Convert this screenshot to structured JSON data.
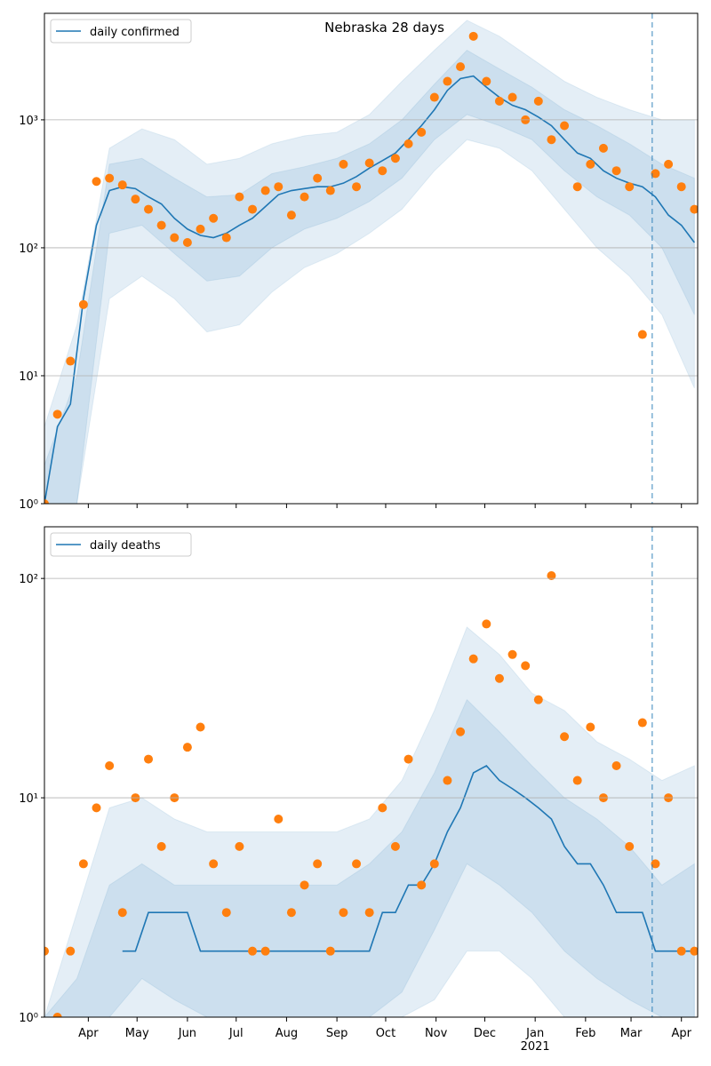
{
  "chart_data": [
    {
      "type": "line",
      "title": "Nebraska 28 days",
      "log_y": true,
      "grid": true,
      "legend": "upper left",
      "xlim": [
        4,
        406
      ],
      "ylim": [
        1,
        6800
      ],
      "vline_x": 378,
      "band_color": "#1f77b4",
      "yticks": [
        {
          "value": 1,
          "label": "10⁰"
        },
        {
          "value": 10,
          "label": "10¹"
        },
        {
          "value": 100,
          "label": "10²"
        },
        {
          "value": 1000,
          "label": "10³"
        }
      ],
      "xticks": [
        31,
        61,
        92,
        122,
        153,
        184,
        214,
        245,
        275,
        306,
        337,
        365,
        396
      ],
      "x": [
        4,
        12,
        20,
        28,
        36,
        44,
        52,
        60,
        68,
        76,
        84,
        92,
        100,
        108,
        116,
        124,
        132,
        140,
        148,
        156,
        164,
        172,
        180,
        188,
        196,
        204,
        212,
        220,
        228,
        236,
        244,
        252,
        260,
        268,
        276,
        284,
        292,
        300,
        308,
        316,
        324,
        332,
        340,
        348,
        356,
        364,
        372,
        380,
        388,
        396,
        404
      ],
      "series": [
        {
          "name": "daily confirmed",
          "color": "#1f77b4",
          "style": "line",
          "values": [
            1,
            4,
            6,
            40,
            150,
            280,
            300,
            290,
            250,
            220,
            170,
            140,
            125,
            120,
            130,
            150,
            170,
            210,
            260,
            280,
            290,
            300,
            300,
            320,
            360,
            420,
            480,
            550,
            700,
            900,
            1200,
            1700,
            2100,
            2200,
            1800,
            1500,
            1300,
            1200,
            1050,
            900,
            700,
            550,
            500,
            400,
            350,
            320,
            300,
            250,
            180,
            150,
            110
          ]
        },
        {
          "color": "#ff7f0e",
          "style": "scatter",
          "values": [
            1,
            5,
            13,
            36,
            330,
            350,
            310,
            240,
            200,
            150,
            120,
            110,
            140,
            170,
            120,
            250,
            200,
            280,
            300,
            180,
            250,
            350,
            280,
            450,
            300,
            460,
            400,
            500,
            650,
            800,
            1500,
            2000,
            2600,
            4500,
            2000,
            1400,
            1500,
            1000,
            1400,
            700,
            900,
            300,
            450,
            600,
            400,
            300,
            21,
            380,
            450,
            300,
            200
          ]
        }
      ],
      "band_x": [
        4,
        24,
        44,
        64,
        84,
        104,
        124,
        144,
        164,
        184,
        204,
        224,
        244,
        264,
        284,
        304,
        324,
        344,
        364,
        384,
        404
      ],
      "bands": [
        {
          "lower": [
            1,
            1,
            40,
            60,
            40,
            22,
            25,
            45,
            70,
            90,
            130,
            200,
            400,
            700,
            600,
            400,
            200,
            100,
            60,
            30,
            8
          ],
          "upper": [
            4,
            25,
            600,
            850,
            700,
            450,
            500,
            650,
            750,
            800,
            1100,
            2000,
            3500,
            6000,
            4500,
            3000,
            2000,
            1500,
            1200,
            1000,
            1000
          ]
        },
        {
          "lower": [
            1,
            1,
            130,
            150,
            90,
            55,
            60,
            100,
            140,
            170,
            230,
            350,
            700,
            1100,
            900,
            700,
            400,
            250,
            180,
            100,
            30
          ],
          "upper": [
            2,
            10,
            450,
            500,
            350,
            250,
            260,
            380,
            430,
            500,
            650,
            1000,
            1900,
            3500,
            2500,
            1800,
            1200,
            900,
            650,
            450,
            350
          ]
        }
      ]
    },
    {
      "type": "line",
      "log_y": true,
      "grid": true,
      "legend": "upper left",
      "xlim": [
        4,
        406
      ],
      "ylim": [
        1,
        172
      ],
      "vline_x": 378,
      "band_color": "#1f77b4",
      "yticks": [
        {
          "value": 1,
          "label": "10⁰"
        },
        {
          "value": 10,
          "label": "10¹"
        },
        {
          "value": 100,
          "label": "10²"
        }
      ],
      "xticks": [
        {
          "value": 31,
          "label": "Apr"
        },
        {
          "value": 61,
          "label": "May"
        },
        {
          "value": 92,
          "label": "Jun"
        },
        {
          "value": 122,
          "label": "Jul"
        },
        {
          "value": 153,
          "label": "Aug"
        },
        {
          "value": 184,
          "label": "Sep"
        },
        {
          "value": 214,
          "label": "Oct"
        },
        {
          "value": 245,
          "label": "Nov"
        },
        {
          "value": 275,
          "label": "Dec"
        },
        {
          "value": 306,
          "label": "Jan"
        },
        {
          "value": 337,
          "label": "Feb"
        },
        {
          "value": 365,
          "label": "Mar"
        },
        {
          "value": 396,
          "label": "Apr"
        }
      ],
      "xtick_sublabels": [
        {
          "value": 306,
          "label": "2021"
        }
      ],
      "x": [
        4,
        12,
        20,
        28,
        36,
        44,
        52,
        60,
        68,
        76,
        84,
        92,
        100,
        108,
        116,
        124,
        132,
        140,
        148,
        156,
        164,
        172,
        180,
        188,
        196,
        204,
        212,
        220,
        228,
        236,
        244,
        252,
        260,
        268,
        276,
        284,
        292,
        300,
        308,
        316,
        324,
        332,
        340,
        348,
        356,
        364,
        372,
        380,
        388,
        396,
        404
      ],
      "series": [
        {
          "name": "daily deaths",
          "color": "#1f77b4",
          "style": "line",
          "values": [
            null,
            null,
            null,
            null,
            null,
            null,
            2,
            2,
            3,
            3,
            3,
            3,
            2,
            2,
            2,
            2,
            2,
            2,
            2,
            2,
            2,
            2,
            2,
            2,
            2,
            2,
            3,
            3,
            4,
            4,
            5,
            7,
            9,
            13,
            14,
            12,
            11,
            10,
            9,
            8,
            6,
            5,
            5,
            4,
            3,
            3,
            3,
            2,
            2,
            2,
            2
          ]
        },
        {
          "color": "#ff7f0e",
          "style": "scatter",
          "values": [
            2,
            1,
            2,
            5,
            9,
            14,
            3,
            10,
            15,
            6,
            10,
            17,
            21,
            5,
            3,
            6,
            2,
            2,
            8,
            3,
            4,
            5,
            2,
            3,
            5,
            3,
            9,
            6,
            15,
            4,
            5,
            12,
            20,
            43,
            62,
            35,
            45,
            40,
            28,
            103,
            19,
            12,
            21,
            10,
            14,
            6,
            22,
            5,
            10,
            2,
            2
          ]
        }
      ],
      "band_x": [
        4,
        24,
        44,
        64,
        84,
        104,
        124,
        144,
        164,
        184,
        204,
        224,
        244,
        264,
        284,
        304,
        324,
        344,
        364,
        384,
        404
      ],
      "bands": [
        {
          "lower": [
            1,
            1,
            1,
            1,
            1,
            1,
            1,
            1,
            1,
            1,
            1,
            1,
            1.2,
            2,
            2,
            1.5,
            1,
            1,
            1,
            1,
            1
          ],
          "upper": [
            1,
            3,
            9,
            10,
            8,
            7,
            7,
            7,
            7,
            7,
            8,
            12,
            25,
            60,
            45,
            30,
            25,
            18,
            15,
            12,
            14
          ]
        },
        {
          "lower": [
            1,
            1,
            1,
            1.5,
            1.2,
            1,
            1,
            1,
            1,
            1,
            1,
            1.3,
            2.5,
            5,
            4,
            3,
            2,
            1.5,
            1.2,
            1,
            1
          ],
          "upper": [
            1,
            1.5,
            4,
            5,
            4,
            4,
            4,
            4,
            4,
            4,
            5,
            7,
            13,
            28,
            20,
            14,
            10,
            8,
            6,
            4,
            5
          ]
        }
      ]
    }
  ]
}
